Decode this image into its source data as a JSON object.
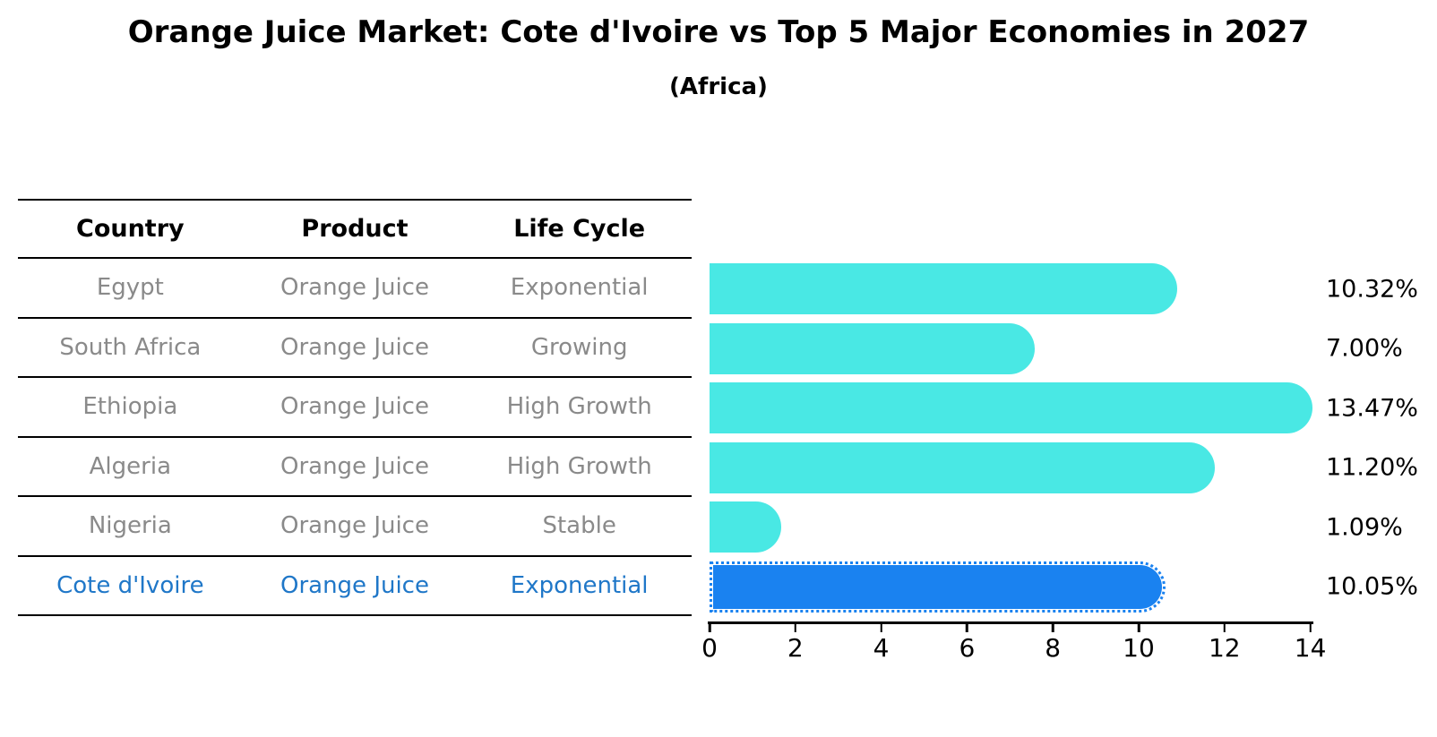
{
  "title": "Orange Juice Market: Cote d'Ivoire vs Top 5 Major Economies in 2027",
  "subtitle": "(Africa)",
  "table": {
    "headers": [
      "Country",
      "Product",
      "Life Cycle"
    ],
    "rows": [
      {
        "country": "Egypt",
        "product": "Orange Juice",
        "life_cycle": "Exponential",
        "highlight": false
      },
      {
        "country": "South Africa",
        "product": "Orange Juice",
        "life_cycle": "Growing",
        "highlight": false
      },
      {
        "country": "Ethiopia",
        "product": "Orange Juice",
        "life_cycle": "High Growth",
        "highlight": false
      },
      {
        "country": "Algeria",
        "product": "Orange Juice",
        "life_cycle": "High Growth",
        "highlight": false
      },
      {
        "country": "Nigeria",
        "product": "Orange Juice",
        "life_cycle": "Stable",
        "highlight": false
      },
      {
        "country": "Cote d'Ivoire",
        "product": "Orange Juice",
        "life_cycle": "Exponential",
        "highlight": true
      }
    ]
  },
  "chart_data": {
    "type": "bar",
    "orientation": "horizontal",
    "title": "Orange Juice Market: Cote d'Ivoire vs Top 5 Major Economies in 2027",
    "subtitle": "(Africa)",
    "categories": [
      "Egypt",
      "South Africa",
      "Ethiopia",
      "Algeria",
      "Nigeria",
      "Cote d'Ivoire"
    ],
    "values": [
      10.32,
      7.0,
      13.47,
      11.2,
      1.09,
      10.05
    ],
    "value_labels": [
      "10.32%",
      "7.00%",
      "13.47%",
      "11.20%",
      "1.09%",
      "10.05%"
    ],
    "highlight_category": "Cote d'Ivoire",
    "xlabel": "",
    "ylabel": "",
    "xlim": [
      0,
      14
    ],
    "x_ticks": [
      0,
      2,
      4,
      6,
      8,
      10,
      12,
      14
    ],
    "grid": false,
    "legend": false,
    "colors": {
      "bar": "#49e8e4",
      "highlight_bar": "#1a82f0",
      "highlight_edge": "#1a82f0",
      "highlight_text": "#1f77c8",
      "row_text": "#8a8a8a",
      "header_text": "#000000",
      "value_label_text": "#000000",
      "axis": "#000000"
    }
  }
}
